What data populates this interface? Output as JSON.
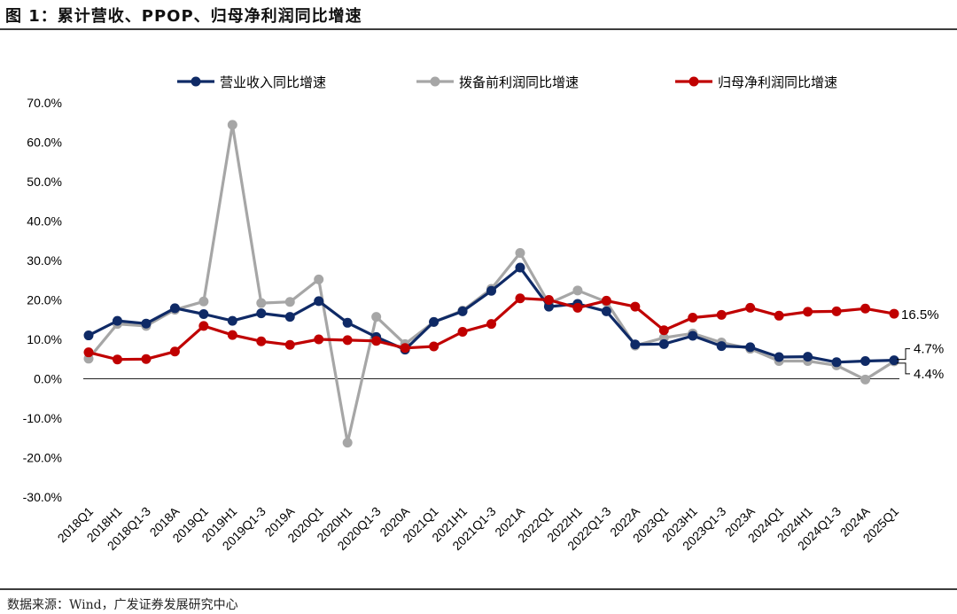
{
  "page_title": "图 1：累计营收、PPOP、归母净利润同比增速",
  "source_text": "数据来源：Wind，广发证券发展研究中心",
  "chart_data": {
    "type": "line",
    "title": "累计营收、PPOP、归母净利润同比增速",
    "xlabel": "",
    "ylabel": "",
    "ylim": [
      -30,
      70
    ],
    "y_ticks": [
      70,
      60,
      50,
      40,
      30,
      20,
      10,
      0,
      -10,
      -20,
      -30
    ],
    "y_tick_labels": [
      "70.0%",
      "60.0%",
      "50.0%",
      "40.0%",
      "30.0%",
      "20.0%",
      "10.0%",
      "0.0%",
      "-10.0%",
      "-20.0%",
      "-30.0%"
    ],
    "legend_position": "top",
    "categories": [
      "2018Q1",
      "2018H1",
      "2018Q1-3",
      "2018A",
      "2019Q1",
      "2019H1",
      "2019Q1-3",
      "2019A",
      "2020Q1",
      "2020H1",
      "2020Q1-3",
      "2020A",
      "2021Q1",
      "2021H1",
      "2021Q1-3",
      "2021A",
      "2022Q1",
      "2022H1",
      "2022Q1-3",
      "2022A",
      "2023Q1",
      "2023H1",
      "2023Q1-3",
      "2023A",
      "2024Q1",
      "2024H1",
      "2024Q1-3",
      "2024A",
      "2025Q1"
    ],
    "series": [
      {
        "name": "营业收入同比增速",
        "color": "#0f2a66",
        "values": [
          11.0,
          14.7,
          14.0,
          17.9,
          16.4,
          14.7,
          16.6,
          15.7,
          19.7,
          14.2,
          10.6,
          7.4,
          14.4,
          17.1,
          22.3,
          28.2,
          18.3,
          19.0,
          17.1,
          8.7,
          8.8,
          10.9,
          8.3,
          8.0,
          5.5,
          5.6,
          4.2,
          4.5,
          4.7
        ]
      },
      {
        "name": "拨备前利润同比增速",
        "color": "#a6a6a6",
        "values": [
          5.1,
          13.9,
          13.4,
          17.5,
          19.6,
          64.4,
          19.2,
          19.5,
          25.2,
          -16.2,
          15.7,
          8.8,
          14.4,
          17.3,
          22.8,
          31.9,
          19.1,
          22.4,
          19.5,
          8.4,
          10.4,
          11.5,
          9.2,
          7.6,
          4.5,
          4.5,
          3.4,
          -0.2,
          4.4
        ]
      },
      {
        "name": "归母净利润同比增速",
        "color": "#c00000",
        "values": [
          6.7,
          4.9,
          5.0,
          6.9,
          13.4,
          11.1,
          9.5,
          8.6,
          10.0,
          9.8,
          9.6,
          7.8,
          8.2,
          11.9,
          13.9,
          20.4,
          20.0,
          18.0,
          19.8,
          18.3,
          12.3,
          15.5,
          16.2,
          18.0,
          16.0,
          17.0,
          17.1,
          17.8,
          16.5
        ]
      }
    ],
    "annotations": [
      {
        "label": "16.5%",
        "series": "归母净利润同比增速"
      },
      {
        "label": "4.7%",
        "series": "营业收入同比增速"
      },
      {
        "label": "4.4%",
        "series": "拨备前利润同比增速"
      }
    ]
  }
}
